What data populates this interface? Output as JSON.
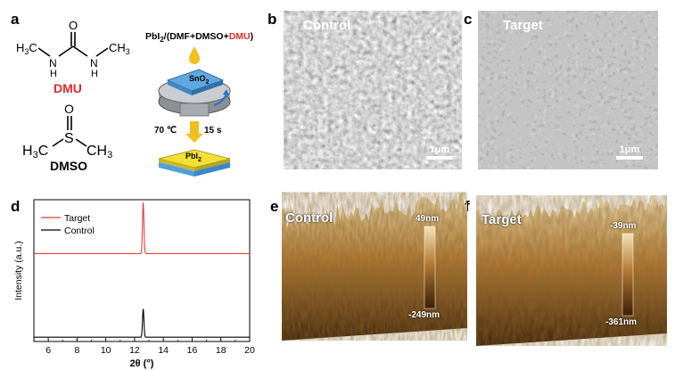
{
  "panels": {
    "a": "a",
    "b": "b",
    "c": "c",
    "d": "d",
    "e": "e",
    "f": "f"
  },
  "panel_a": {
    "dmu_name": "DMU",
    "dmso_name": "DMSO",
    "precursor_prefix": "PbI",
    "precursor_sub": "2",
    "precursor_mid": "/(DMF+DMSO+",
    "precursor_red": "DMU",
    "precursor_end": ")",
    "substrate": "SnO",
    "substrate_sub": "2",
    "anneal_temp": "70 ℃",
    "anneal_time": "15 s",
    "film": "PbI",
    "film_sub": "2",
    "colors": {
      "accent_red": "#e32b2b",
      "substrate_blue": "#5fa8e0",
      "film_yellow": "#f2e034",
      "drop_yellow": "#f0c020",
      "arrow_blue": "#2a6fd1"
    }
  },
  "panel_b": {
    "label": "Control",
    "scale": "1μm"
  },
  "panel_c": {
    "label": "Target",
    "scale": "1μm"
  },
  "panel_e": {
    "label": "Control",
    "max": "49nm",
    "min": "-249nm"
  },
  "panel_f": {
    "label": "Target",
    "max": "-39nm",
    "min": "-361nm"
  },
  "chart_data": {
    "type": "line",
    "xlabel": "2θ (°)",
    "ylabel": "Intensity (a.u.)",
    "xlim": [
      5,
      20
    ],
    "xticks": [
      "6",
      "8",
      "10",
      "12",
      "14",
      "16",
      "18",
      "20"
    ],
    "legend_position": "top-left",
    "series": [
      {
        "name": "Target",
        "color": "#e8403a",
        "peak_x": 12.6,
        "baseline": 0.62,
        "peak": 0.98
      },
      {
        "name": "Control",
        "color": "#000000",
        "peak_x": 12.6,
        "baseline": 0.03,
        "peak": 0.23
      }
    ]
  }
}
